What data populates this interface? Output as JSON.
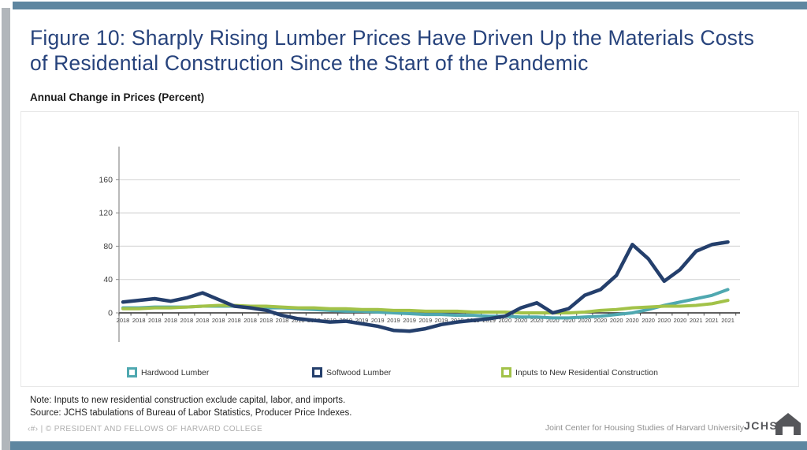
{
  "slide": {
    "title": "Figure 10: Sharply Rising Lumber Prices Have Driven Up the Materials Costs of Residential Construction Since the Start of the Pandemic",
    "subtitle": "Annual Change in Prices (Percent)",
    "note": "Note: Inputs to new residential construction exclude capital, labor, and imports.",
    "source": "Source: JCHS tabulations of Bureau of Labor Statistics, Producer Price Indexes.",
    "footer_left": "‹#› | © PRESIDENT AND FELLOWS OF HARVARD COLLEGE",
    "footer_right": "Joint Center for Housing Studies of Harvard University",
    "logo_text": "JCHS",
    "accent_bar_color": "#5E86A0",
    "title_color": "#27437C"
  },
  "chart_data": {
    "type": "line",
    "title": "Annual Change in Prices (Percent)",
    "x_labels": [
      "2018",
      "2018",
      "2018",
      "2018",
      "2018",
      "2018",
      "2018",
      "2018",
      "2018",
      "2018",
      "2018",
      "2018",
      "2019",
      "2019",
      "2019",
      "2019",
      "2019",
      "2019",
      "2019",
      "2019",
      "2019",
      "2019",
      "2019",
      "2019",
      "2020",
      "2020",
      "2020",
      "2020",
      "2020",
      "2020",
      "2020",
      "2020",
      "2020",
      "2020",
      "2020",
      "2020",
      "2021",
      "2021",
      "2021"
    ],
    "yticks": [
      0,
      40,
      80,
      120,
      160
    ],
    "ylim": [
      -30,
      200
    ],
    "grid": true,
    "legend_position": "bottom",
    "grid_color": "#d9d9d9",
    "axis_color": "#4a4a4a",
    "series": [
      {
        "name": "Hardwood Lumber",
        "color": "#4FA8B0",
        "values": [
          6,
          6,
          7,
          7,
          7,
          8,
          8,
          8,
          7,
          6,
          6,
          5,
          4,
          3,
          2,
          2,
          1,
          0,
          -1,
          -2,
          -2,
          -3,
          -3,
          -4,
          -4,
          -5,
          -5,
          -6,
          -6,
          -5,
          -4,
          -2,
          0,
          4,
          9,
          13,
          17,
          21,
          28
        ]
      },
      {
        "name": "Softwood Lumber",
        "color": "#243F6C",
        "values": [
          13,
          15,
          17,
          14,
          18,
          24,
          16,
          8,
          6,
          3,
          -3,
          -7,
          -9,
          -11,
          -10,
          -13,
          -16,
          -21,
          -22,
          -19,
          -14,
          -11,
          -9,
          -7,
          -4,
          6,
          12,
          0,
          5,
          21,
          28,
          45,
          82,
          65,
          38,
          52,
          74,
          82,
          85
        ]
      },
      {
        "name": "Inputs to New Residential Construction",
        "color": "#A2C248",
        "values": [
          5,
          5,
          6,
          6,
          7,
          8,
          9,
          9,
          8,
          8,
          7,
          6,
          6,
          5,
          5,
          4,
          4,
          3,
          3,
          2,
          2,
          2,
          1,
          1,
          1,
          0,
          0,
          0,
          0,
          1,
          3,
          4,
          6,
          7,
          8,
          8,
          9,
          11,
          15
        ]
      }
    ]
  }
}
